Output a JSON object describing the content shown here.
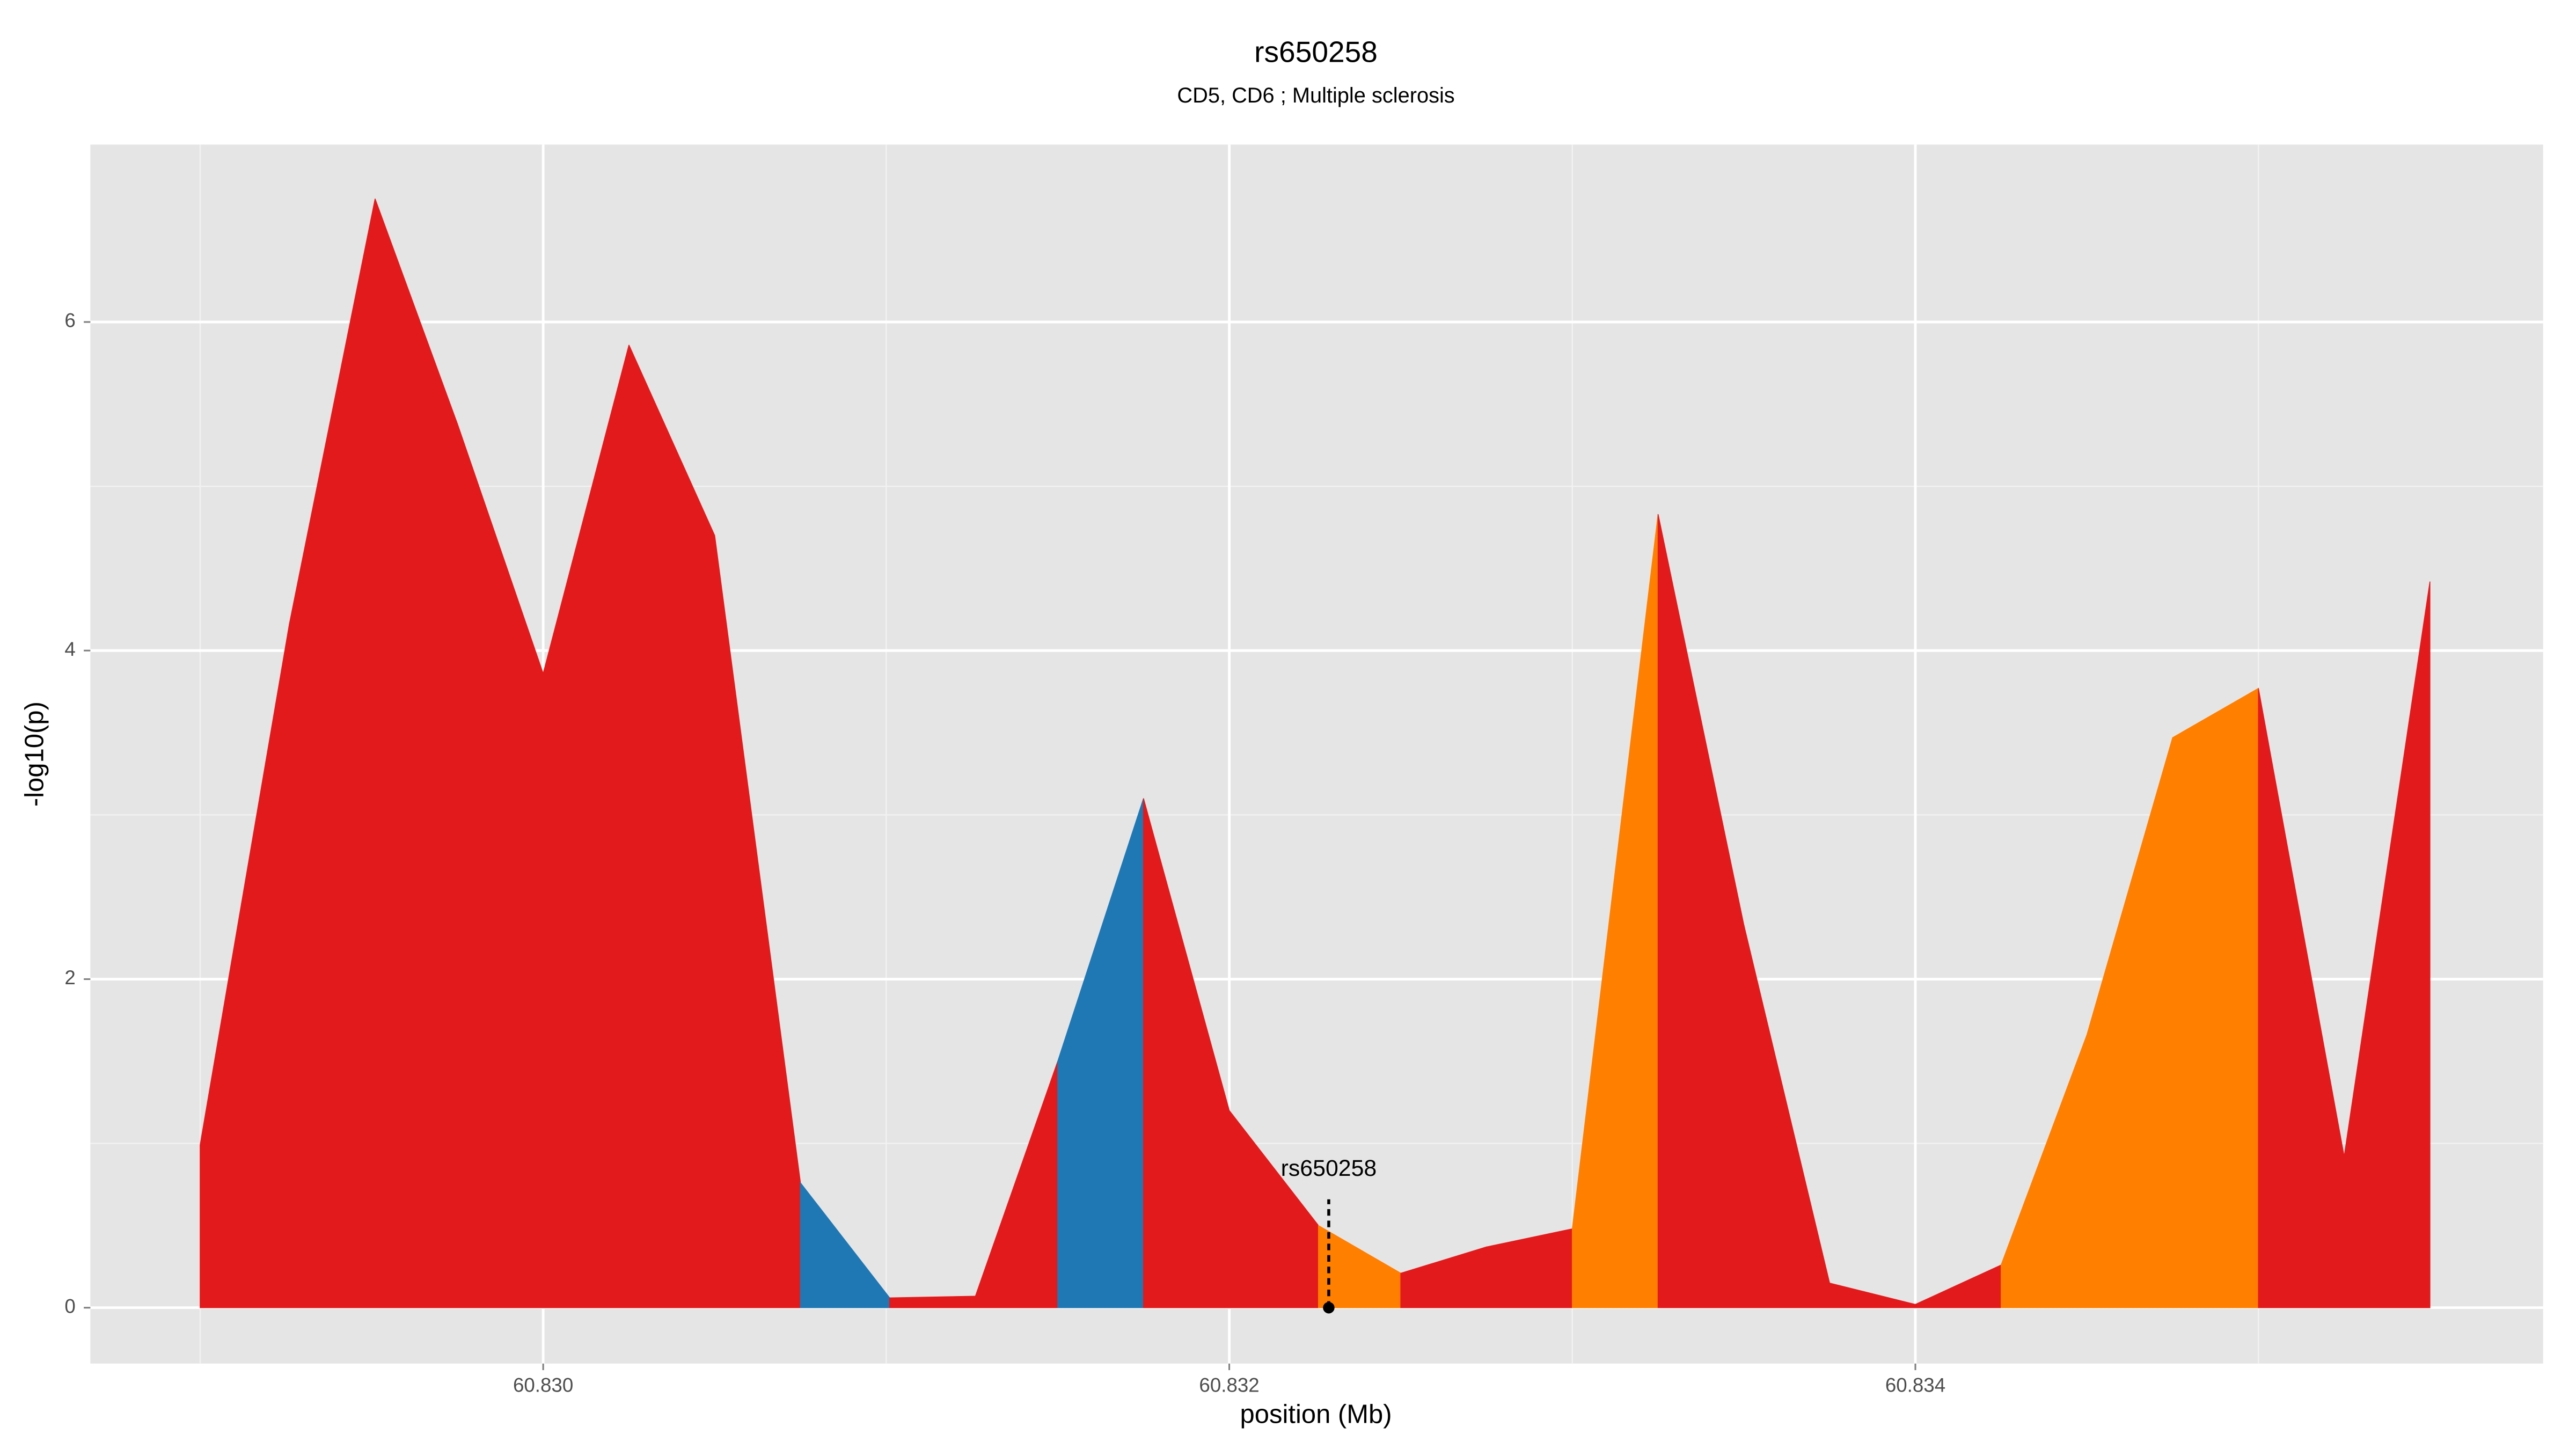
{
  "chart_data": {
    "type": "area",
    "title": "rs650258",
    "subtitle": "CD5, CD6 ; Multiple sclerosis",
    "x_label": "position (Mb)",
    "y_label": "-log10(p)",
    "x": [
      60.829,
      60.82926,
      60.82951,
      60.82975,
      60.83,
      60.83025,
      60.8305,
      60.83075,
      60.83101,
      60.83126,
      60.8315,
      60.83175,
      60.832,
      60.83226,
      60.8325,
      60.83275,
      60.833,
      60.83325,
      60.8335,
      60.83375,
      60.834,
      60.83425,
      60.8345,
      60.83475,
      60.835,
      60.83525,
      60.8355
    ],
    "series": [
      {
        "values": [
          0.99,
          4.16,
          6.75,
          5.38,
          3.86,
          5.86,
          4.7,
          0.76,
          0.06,
          0.07,
          1.5,
          3.1,
          1.2,
          0.5,
          0.21,
          0.37,
          0.48,
          4.83,
          2.33,
          0.15,
          0.02,
          0.26,
          1.66,
          3.47,
          3.77,
          0.92,
          4.42
        ],
        "segment_colors": [
          "#e31a1c",
          "#e31a1c",
          "#e31a1c",
          "#e31a1c",
          "#e31a1c",
          "#e31a1c",
          "#e31a1c",
          "#1f78b4",
          "#e31a1c",
          "#e31a1c",
          "#1f78b4",
          "#e31a1c",
          "#e31a1c",
          "#ff7f00",
          "#e31a1c",
          "#e31a1c",
          "#ff7f00",
          "#e31a1c",
          "#e31a1c",
          "#e31a1c",
          "#e31a1c",
          "#ff7f00",
          "#ff7f00",
          "#ff7f00",
          "#e31a1c",
          "#e31a1c",
          "#e31a1c"
        ]
      }
    ],
    "annotation": {
      "label": "rs650258",
      "x": 60.83229,
      "y": 0
    },
    "xlim": [
      60.82868,
      60.83583
    ],
    "ylim": [
      -0.34,
      7.08
    ],
    "xticks": [
      {
        "value": 60.83,
        "label": "60.830"
      },
      {
        "value": 60.832,
        "label": "60.832"
      },
      {
        "value": 60.834,
        "label": "60.834"
      }
    ],
    "yticks": [
      0,
      2,
      4,
      6
    ],
    "x_minor_grid": [
      60.829,
      60.831,
      60.833,
      60.835
    ],
    "y_minor_grid": [
      1,
      3,
      5
    ],
    "grid": true
  }
}
